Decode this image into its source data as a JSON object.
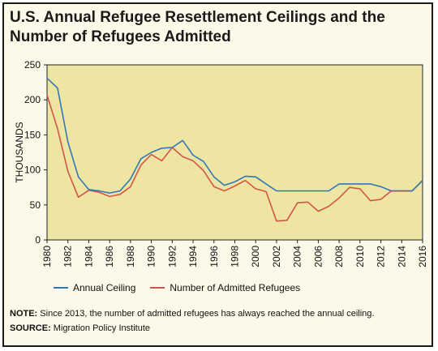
{
  "title": "U.S. Annual Refugee Resettlement Ceilings and the Number of Refugees Admitted",
  "note_label": "NOTE:",
  "note_text": "Since 2013, the number of admitted refugees has always reached the annual ceiling.",
  "source_label": "SOURCE:",
  "source_text": "Migration Policy Institute",
  "chart_data": {
    "type": "line",
    "ylabel": "THOUSANDS",
    "xlabel": "",
    "ylim": [
      0,
      250
    ],
    "yticks": [
      0,
      50,
      100,
      150,
      200,
      250
    ],
    "xlim": [
      1980,
      2016
    ],
    "xticks": [
      1980,
      1982,
      1984,
      1986,
      1988,
      1990,
      1992,
      1994,
      1996,
      1998,
      2000,
      2002,
      2004,
      2006,
      2008,
      2010,
      2012,
      2014,
      2016
    ],
    "grid": false,
    "legend_position": "bottom",
    "plot_background": "#efe5a3",
    "x": [
      1980,
      1981,
      1982,
      1983,
      1984,
      1985,
      1986,
      1987,
      1988,
      1989,
      1990,
      1991,
      1992,
      1993,
      1994,
      1995,
      1996,
      1997,
      1998,
      1999,
      2000,
      2001,
      2002,
      2003,
      2004,
      2005,
      2006,
      2007,
      2008,
      2009,
      2010,
      2011,
      2012,
      2013,
      2014,
      2015,
      2016
    ],
    "series": [
      {
        "name": "Annual Ceiling",
        "color": "#2f78b7",
        "values": [
          231,
          217,
          140,
          90,
          72,
          70,
          67,
          70,
          87,
          116,
          125,
          131,
          132,
          142,
          121,
          112,
          90,
          78,
          83,
          91,
          90,
          80,
          70,
          70,
          70,
          70,
          70,
          70,
          80,
          80,
          80,
          80,
          76,
          70,
          70,
          70,
          85
        ]
      },
      {
        "name": "Number of Admitted Refugees",
        "color": "#d2554a",
        "values": [
          207,
          159,
          98,
          61,
          71,
          68,
          62,
          65,
          76,
          107,
          122,
          113,
          132,
          119,
          113,
          99,
          76,
          70,
          77,
          85,
          73,
          69,
          27,
          28,
          53,
          54,
          41,
          48,
          60,
          75,
          73,
          56,
          58,
          70,
          70,
          70,
          85
        ]
      }
    ]
  }
}
